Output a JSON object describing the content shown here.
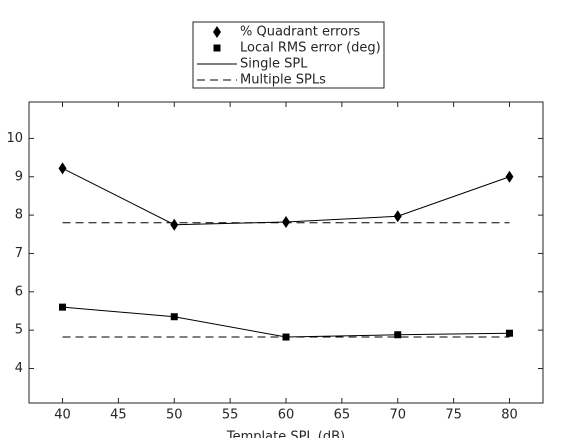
{
  "chart_data": {
    "type": "line",
    "x_label": "Template SPL (dB)",
    "x": [
      40,
      50,
      60,
      70,
      80
    ],
    "xlim": [
      37,
      83
    ],
    "xticks": [
      40,
      45,
      50,
      55,
      60,
      65,
      70,
      75,
      80
    ],
    "ylim": [
      3.1,
      10.95
    ],
    "yticks": [
      4,
      5,
      6,
      7,
      8,
      9,
      10
    ],
    "color": "#000000",
    "series": [
      {
        "marker": "diamond",
        "linestyle": "solid",
        "values": [
          9.22,
          7.75,
          7.82,
          7.97,
          9.0
        ]
      },
      {
        "marker": "none",
        "linestyle": "dashed",
        "values": [
          7.8,
          7.8,
          7.8,
          7.8,
          7.8
        ]
      },
      {
        "marker": "square",
        "linestyle": "solid",
        "values": [
          5.6,
          5.35,
          4.82,
          4.88,
          4.92
        ]
      },
      {
        "marker": "none",
        "linestyle": "dashed",
        "values": [
          4.82,
          4.82,
          4.82,
          4.82,
          4.82
        ]
      }
    ],
    "legend": [
      {
        "label": "% Quadrant errors",
        "marker": "diamond",
        "linestyle": "none"
      },
      {
        "label": "Local RMS error (deg)",
        "marker": "square",
        "linestyle": "none"
      },
      {
        "label": "Single SPL",
        "marker": "none",
        "linestyle": "solid"
      },
      {
        "label": "Multiple SPLs",
        "marker": "none",
        "linestyle": "dashed"
      }
    ]
  }
}
